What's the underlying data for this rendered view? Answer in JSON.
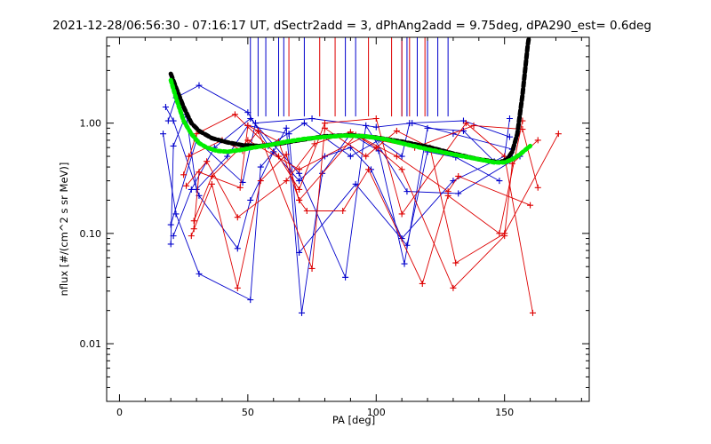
{
  "chart_data": {
    "type": "line",
    "title": "2021-12-28/06:56:30 - 07:16:17 UT, dSectr2add = 3, dPhAng2add = 9.75deg, dPA290_est=   0.6deg",
    "xlabel": "PA [deg]",
    "ylabel": "nflux [#/(cm^2 s sr MeV)]",
    "x_scale": "linear",
    "y_scale": "log",
    "xlim": [
      -5,
      183
    ],
    "ylim": [
      0.003,
      6
    ],
    "x_ticks": [
      0,
      50,
      100,
      150
    ],
    "x_tick_labels": [
      "0",
      "50",
      "100",
      "150"
    ],
    "y_ticks": [
      0.01,
      0.1,
      1.0
    ],
    "y_tick_labels": [
      "0.01",
      "0.10",
      "1.00"
    ],
    "grid": false,
    "colors": {
      "blue": "#0000cc",
      "red": "#dd0000",
      "black": "#000000",
      "green": "#00ee00"
    },
    "vertical_markers": {
      "blue": [
        51,
        54,
        57,
        62,
        64,
        72,
        88,
        92,
        110,
        112,
        116,
        120,
        124,
        128
      ],
      "red": [
        66,
        78,
        84,
        97,
        106,
        110,
        113,
        119
      ],
      "ymin": 1.15,
      "ymax": 6
    },
    "series": [
      {
        "color": "blue",
        "lines": [
          [
            [
              17,
              0.8
            ],
            [
              22,
              0.15
            ],
            [
              31,
              0.043
            ],
            [
              51,
              0.025
            ],
            [
              55,
              0.4
            ],
            [
              60,
              0.55
            ],
            [
              70,
              0.3
            ],
            [
              80,
              0.5
            ],
            [
              90,
              0.6
            ],
            [
              98,
              0.38
            ],
            [
              110,
              0.09
            ],
            [
              130,
              0.3
            ],
            [
              150,
              0.5
            ],
            [
              152,
              1.1
            ]
          ],
          [
            [
              18,
              1.4
            ],
            [
              21,
              1.05
            ],
            [
              31,
              0.22
            ],
            [
              46,
              0.073
            ],
            [
              51,
              0.2
            ],
            [
              60,
              0.55
            ],
            [
              65,
              0.9
            ],
            [
              71,
              0.019
            ],
            [
              79,
              0.35
            ],
            [
              90,
              0.8
            ],
            [
              101,
              0.56
            ],
            [
              111,
              0.053
            ],
            [
              120,
              0.9
            ],
            [
              134,
              0.85
            ],
            [
              146,
              0.45
            ],
            [
              153,
              0.48
            ]
          ],
          [
            [
              20,
              0.08
            ],
            [
              21,
              0.62
            ],
            [
              26,
              1.2
            ],
            [
              30,
              0.25
            ],
            [
              42,
              0.5
            ],
            [
              50,
              0.95
            ],
            [
              66,
              0.8
            ],
            [
              70,
              0.067
            ],
            [
              92,
              0.28
            ],
            [
              112,
              0.078
            ],
            [
              120,
              0.55
            ],
            [
              131,
              0.49
            ],
            [
              148,
              0.3
            ]
          ],
          [
            [
              19,
              1.05
            ],
            [
              22,
              1.7
            ],
            [
              31,
              2.2
            ],
            [
              50,
              1.25
            ],
            [
              58,
              0.62
            ],
            [
              72,
              1.0
            ],
            [
              90,
              0.5
            ],
            [
              101,
              0.7
            ],
            [
              110,
              0.5
            ],
            [
              113,
              1.0
            ],
            [
              134,
              1.05
            ],
            [
              152,
              0.75
            ]
          ],
          [
            [
              21,
              0.095
            ],
            [
              28,
              0.25
            ],
            [
              37,
              0.6
            ],
            [
              51,
              1.1
            ],
            [
              70,
              0.35
            ],
            [
              88,
              0.04
            ],
            [
              96,
              0.95
            ],
            [
              112,
              0.24
            ],
            [
              132,
              0.23
            ],
            [
              156,
              0.5
            ]
          ],
          [
            [
              20,
              0.12
            ],
            [
              30,
              0.7
            ],
            [
              48,
              0.29
            ],
            [
              53,
              1.0
            ],
            [
              75,
              1.1
            ],
            [
              100,
              0.92
            ],
            [
              114,
              1.0
            ],
            [
              130,
              0.8
            ],
            [
              153,
              0.58
            ]
          ]
        ]
      },
      {
        "color": "red",
        "lines": [
          [
            [
              25,
              0.34
            ],
            [
              30,
              0.8
            ],
            [
              45,
              1.2
            ],
            [
              62,
              0.5
            ],
            [
              70,
              0.25
            ],
            [
              80,
              1.0
            ],
            [
              100,
              1.1
            ],
            [
              110,
              0.15
            ],
            [
              135,
              1.0
            ],
            [
              150,
              0.5
            ],
            [
              161,
              0.019
            ]
          ],
          [
            [
              28,
              0.095
            ],
            [
              36,
              0.28
            ],
            [
              46,
              0.032
            ],
            [
              55,
              0.3
            ],
            [
              65,
              0.52
            ],
            [
              70,
              0.2
            ],
            [
              73,
              0.16
            ],
            [
              87,
              0.16
            ],
            [
              97,
              0.38
            ],
            [
              118,
              0.035
            ],
            [
              128,
              0.22
            ],
            [
              148,
              0.1
            ],
            [
              157,
              1.05
            ]
          ],
          [
            [
              27,
              0.5
            ],
            [
              40,
              0.7
            ],
            [
              48,
              0.56
            ],
            [
              54,
              0.85
            ],
            [
              75,
              0.048
            ],
            [
              80,
              0.9
            ],
            [
              96,
              0.5
            ],
            [
              108,
              0.85
            ],
            [
              121,
              0.6
            ],
            [
              131,
              0.054
            ],
            [
              150,
              0.1
            ],
            [
              171,
              0.8
            ]
          ],
          [
            [
              29,
              0.11
            ],
            [
              31,
              0.36
            ],
            [
              47,
              0.26
            ],
            [
              50,
              0.95
            ],
            [
              62,
              0.68
            ],
            [
              70,
              0.2
            ],
            [
              92,
              0.78
            ],
            [
              100,
              0.6
            ],
            [
              110,
              0.38
            ],
            [
              130,
              0.032
            ],
            [
              150,
              0.095
            ],
            [
              153,
              0.43
            ],
            [
              163,
              0.7
            ]
          ],
          [
            [
              26,
              0.27
            ],
            [
              34,
              0.45
            ],
            [
              46,
              0.14
            ],
            [
              65,
              0.3
            ],
            [
              76,
              0.65
            ],
            [
              90,
              0.83
            ],
            [
              108,
              0.5
            ],
            [
              128,
              0.24
            ],
            [
              132,
              0.33
            ],
            [
              160,
              0.18
            ]
          ],
          [
            [
              29,
              0.13
            ],
            [
              36,
              0.33
            ],
            [
              50,
              0.7
            ],
            [
              70,
              0.38
            ],
            [
              95,
              0.75
            ],
            [
              115,
              0.6
            ],
            [
              138,
              0.95
            ],
            [
              157,
              0.88
            ],
            [
              163,
              0.26
            ]
          ]
        ]
      }
    ],
    "fit_curves": [
      {
        "color": "black",
        "style": "thick-dashed",
        "points": [
          [
            20,
            2.8
          ],
          [
            22,
            2.1
          ],
          [
            25,
            1.4
          ],
          [
            28,
            1.0
          ],
          [
            31,
            0.85
          ],
          [
            36,
            0.73
          ],
          [
            42,
            0.67
          ],
          [
            48,
            0.63
          ],
          [
            55,
            0.62
          ],
          [
            62,
            0.65
          ],
          [
            70,
            0.7
          ],
          [
            80,
            0.76
          ],
          [
            90,
            0.78
          ],
          [
            100,
            0.74
          ],
          [
            110,
            0.68
          ],
          [
            120,
            0.61
          ],
          [
            130,
            0.53
          ],
          [
            140,
            0.47
          ],
          [
            148,
            0.44
          ],
          [
            151,
            0.47
          ],
          [
            153,
            0.55
          ],
          [
            155,
            0.8
          ],
          [
            156,
            1.2
          ],
          [
            157,
            1.8
          ],
          [
            158,
            3.0
          ],
          [
            159,
            5.0
          ],
          [
            159.5,
            6.0
          ]
        ]
      },
      {
        "color": "green",
        "style": "thick-dotted",
        "points": [
          [
            20,
            2.45
          ],
          [
            22,
            1.7
          ],
          [
            25,
            1.05
          ],
          [
            28,
            0.8
          ],
          [
            31,
            0.66
          ],
          [
            34,
            0.6
          ],
          [
            38,
            0.56
          ],
          [
            42,
            0.55
          ],
          [
            47,
            0.57
          ],
          [
            52,
            0.6
          ],
          [
            58,
            0.63
          ],
          [
            65,
            0.68
          ],
          [
            72,
            0.72
          ],
          [
            80,
            0.75
          ],
          [
            88,
            0.77
          ],
          [
            96,
            0.76
          ],
          [
            104,
            0.71
          ],
          [
            112,
            0.64
          ],
          [
            120,
            0.58
          ],
          [
            130,
            0.52
          ],
          [
            140,
            0.47
          ],
          [
            146,
            0.44
          ],
          [
            150,
            0.44
          ],
          [
            153,
            0.47
          ],
          [
            156,
            0.52
          ],
          [
            158,
            0.57
          ],
          [
            160,
            0.62
          ]
        ]
      }
    ]
  }
}
